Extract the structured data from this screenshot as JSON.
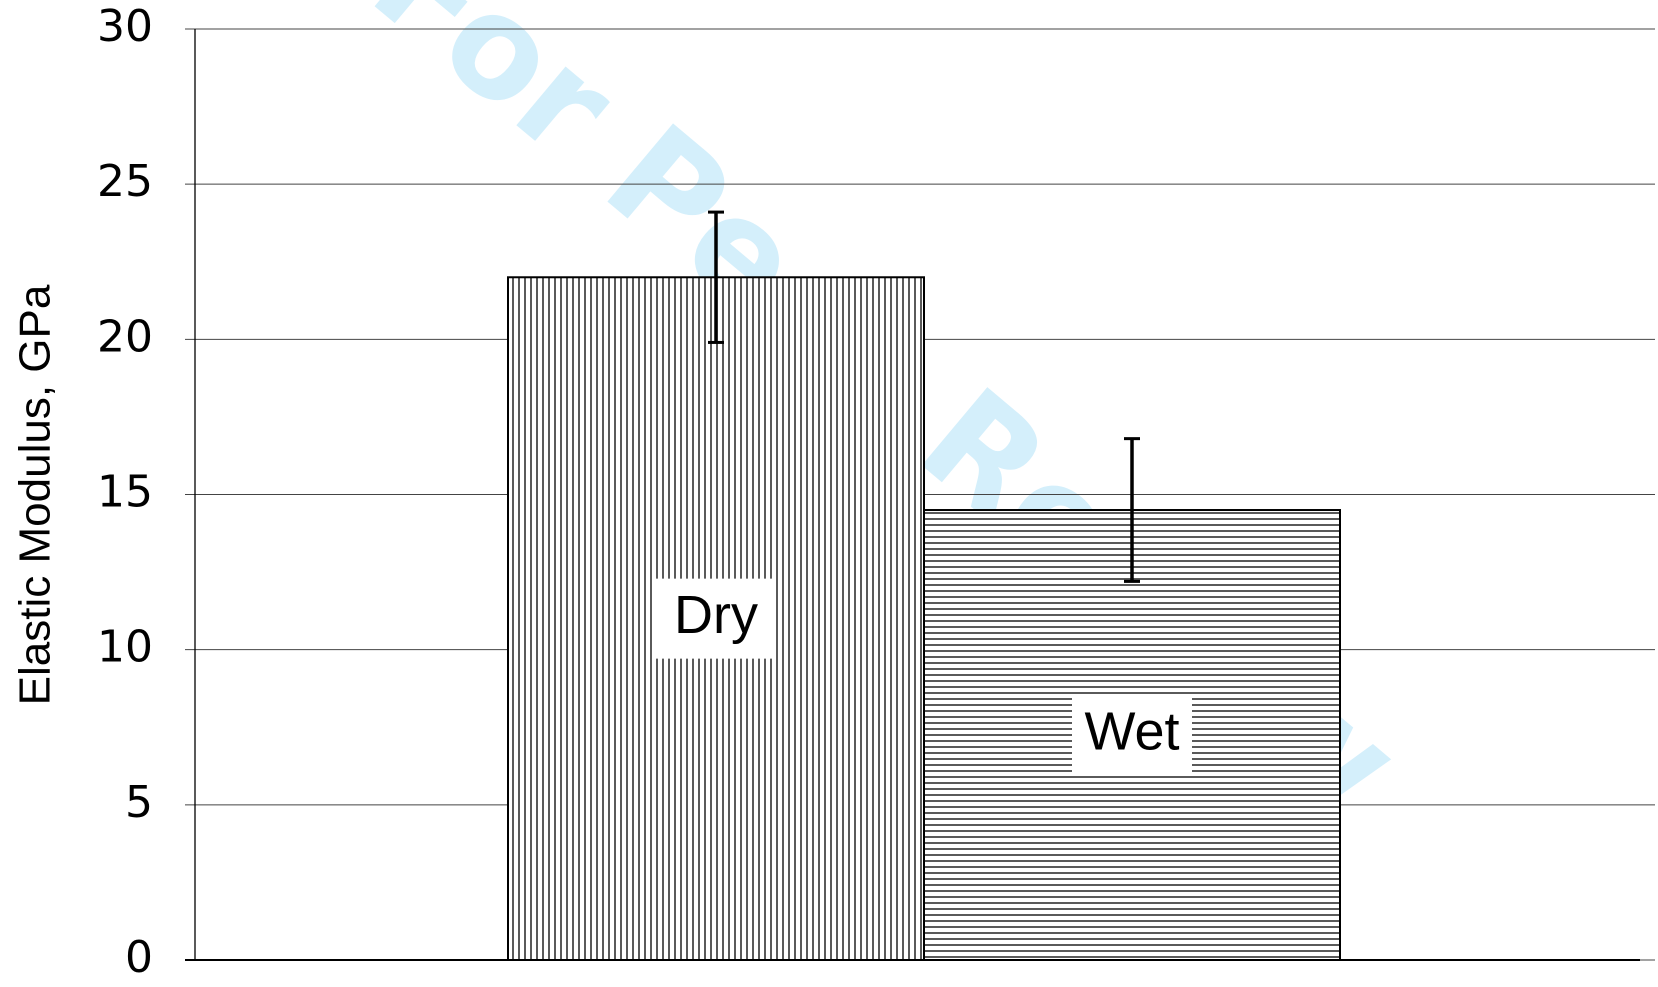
{
  "chart_data": {
    "type": "bar",
    "watermark": "For Peer Review",
    "ylabel": "Elastic Modulus, GPa",
    "categories": [
      "Dry",
      "Wet"
    ],
    "values": [
      22,
      14.5
    ],
    "errors": [
      2.1,
      2.3
    ],
    "patterns": [
      "vertical",
      "horizontal"
    ],
    "color": "#000000",
    "ylim": [
      0,
      30
    ],
    "yticks": [
      0,
      5,
      10,
      15,
      20,
      25,
      30
    ],
    "grid": true
  }
}
